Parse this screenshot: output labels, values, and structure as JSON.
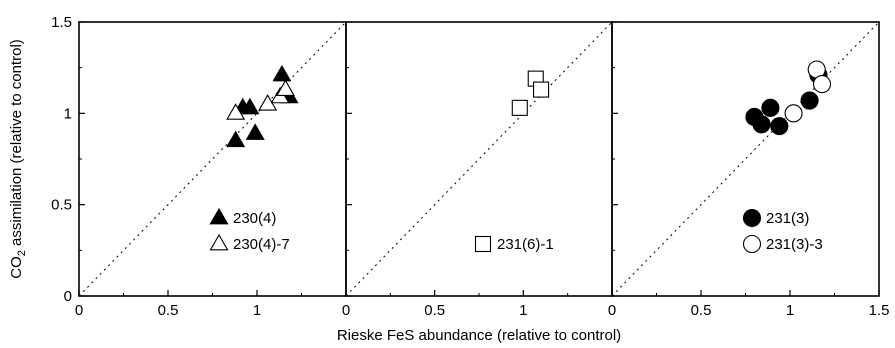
{
  "chart_data": {
    "type": "scatter",
    "xlabel": "Rieske FeS abundance (relative to control)",
    "ylabel_main": "CO",
    "ylabel_sub": "2",
    "ylabel_rest": " assimilation (relative to control)",
    "ylim": [
      0,
      1.5
    ],
    "y_ticks": [
      0,
      0.5,
      1,
      1.5
    ],
    "y_tick_labels": [
      "0",
      "0.5",
      "1",
      "1.5"
    ],
    "reference_line": "y = x (dotted)",
    "panels": [
      {
        "xlim": [
          0,
          1.5
        ],
        "x_ticks": [
          0,
          0.5,
          1
        ],
        "x_tick_labels": [
          "0",
          "0.5",
          "1"
        ],
        "legend_position": "bottom-right",
        "series": [
          {
            "name": "230(4)",
            "marker": "triangle-filled",
            "points": [
              {
                "x": 0.88,
                "y": 0.85
              },
              {
                "x": 0.92,
                "y": 1.03
              },
              {
                "x": 0.96,
                "y": 1.03
              },
              {
                "x": 0.99,
                "y": 0.89
              },
              {
                "x": 1.14,
                "y": 1.21
              },
              {
                "x": 1.18,
                "y": 1.09
              }
            ]
          },
          {
            "name": "230(4)-7",
            "marker": "triangle-open",
            "points": [
              {
                "x": 0.88,
                "y": 1.0
              },
              {
                "x": 1.06,
                "y": 1.05
              },
              {
                "x": 1.13,
                "y": 1.09
              },
              {
                "x": 1.16,
                "y": 1.13
              }
            ]
          }
        ]
      },
      {
        "xlim": [
          0,
          1.5
        ],
        "x_ticks": [
          0,
          0.5,
          1
        ],
        "x_tick_labels": [
          "0",
          "0.5",
          "1"
        ],
        "legend_position": "bottom-right",
        "series": [
          {
            "name": "231(6)-1",
            "marker": "square-open",
            "points": [
              {
                "x": 0.98,
                "y": 1.03
              },
              {
                "x": 1.07,
                "y": 1.19
              },
              {
                "x": 1.1,
                "y": 1.13
              }
            ]
          }
        ]
      },
      {
        "xlim": [
          0,
          1.5
        ],
        "x_ticks": [
          0,
          0.5,
          1,
          1.5
        ],
        "x_tick_labels": [
          "0",
          "0.5",
          "1",
          "1.5"
        ],
        "legend_position": "bottom-right",
        "series": [
          {
            "name": "231(3)",
            "marker": "circle-filled",
            "points": [
              {
                "x": 0.8,
                "y": 0.98
              },
              {
                "x": 0.84,
                "y": 0.94
              },
              {
                "x": 0.89,
                "y": 1.03
              },
              {
                "x": 0.94,
                "y": 0.93
              },
              {
                "x": 1.11,
                "y": 1.07
              },
              {
                "x": 1.16,
                "y": 1.21
              }
            ]
          },
          {
            "name": "231(3)-3",
            "marker": "circle-open",
            "points": [
              {
                "x": 1.02,
                "y": 1.0
              },
              {
                "x": 1.15,
                "y": 1.24
              },
              {
                "x": 1.18,
                "y": 1.16
              }
            ]
          }
        ]
      }
    ]
  }
}
